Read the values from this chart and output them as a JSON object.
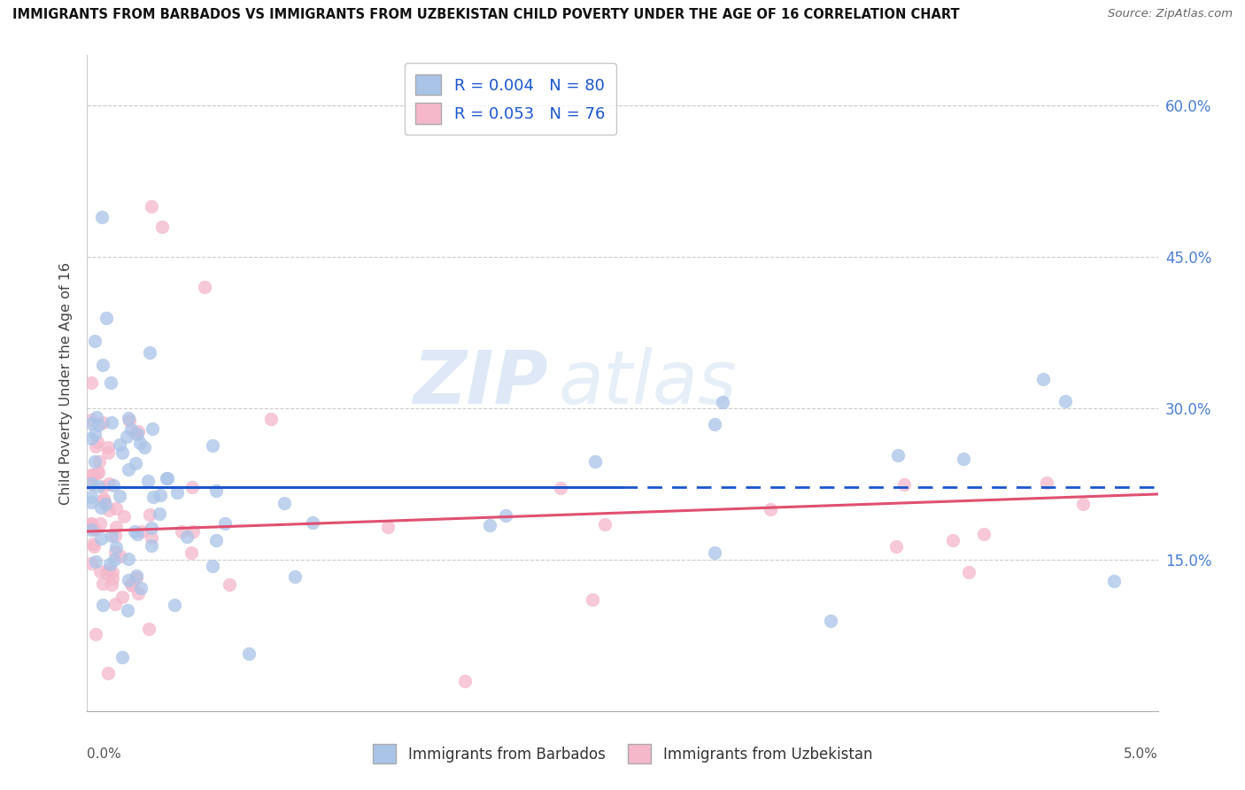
{
  "title": "IMMIGRANTS FROM BARBADOS VS IMMIGRANTS FROM UZBEKISTAN CHILD POVERTY UNDER THE AGE OF 16 CORRELATION CHART",
  "source": "Source: ZipAtlas.com",
  "ylabel": "Child Poverty Under the Age of 16",
  "xmin": 0.0,
  "xmax": 5.0,
  "ymin": 0.0,
  "ymax": 0.65,
  "ytick_vals": [
    0.15,
    0.3,
    0.45,
    0.6
  ],
  "ytick_labels": [
    "15.0%",
    "30.0%",
    "45.0%",
    "60.0%"
  ],
  "legend_r1": "R = 0.004",
  "legend_n1": "N = 80",
  "legend_r2": "R = 0.053",
  "legend_n2": "N = 76",
  "barbados_color": "#aac4e8",
  "uzbekistan_color": "#f5b8cb",
  "line_barbados_color": "#1a56cc",
  "line_uzbekistan_color": "#e05070",
  "watermark_zip": "ZIP",
  "watermark_atlas": "atlas",
  "background_color": "#ffffff",
  "legend_bottom_label1": "Immigrants from Barbados",
  "legend_bottom_label2": "Immigrants from Uzbekistan",
  "tick_label_color": "#4a7fd4",
  "line_solid_end": 2.5,
  "barbados_line_y0": 0.222,
  "barbados_line_y1": 0.222,
  "uzbekistan_line_y0": 0.178,
  "uzbekistan_line_y1": 0.215
}
